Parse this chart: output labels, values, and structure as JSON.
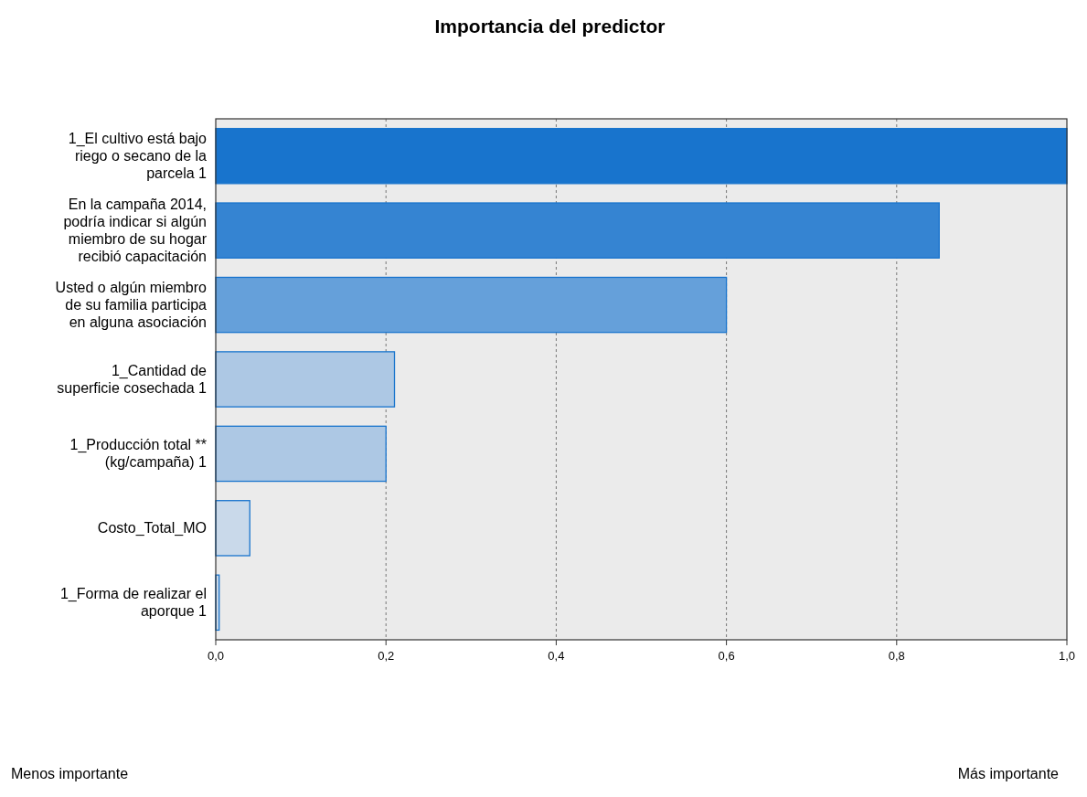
{
  "chart_data": {
    "type": "bar",
    "orientation": "horizontal",
    "title": "Importancia del predictor",
    "categories": [
      "1_El cultivo está bajo riego o secano de la parcela 1",
      "En la campaña 2014, podría indicar si algún miembro de su hogar recibió capacitación",
      "Usted o algún miembro de su familia participa en alguna asociación",
      "1_Cantidad de superficie cosechada 1",
      "1_Producción total ** (kg/campaña) 1",
      "Costo_Total_MO",
      "1_Forma de realizar el aporque 1"
    ],
    "values": [
      1.0,
      0.85,
      0.6,
      0.21,
      0.2,
      0.04,
      0.004
    ],
    "colors": [
      "#1874cd",
      "#3584d2",
      "#65a0da",
      "#adc8e4",
      "#adc8e4",
      "#c9d9ea",
      "#c9d9ea"
    ],
    "xlim": [
      0,
      1
    ],
    "xticks": [
      {
        "value": 0,
        "label": "0,0"
      },
      {
        "value": 0.2,
        "label": "0,2"
      },
      {
        "value": 0.4,
        "label": "0,4"
      },
      {
        "value": 0.6,
        "label": "0,6"
      },
      {
        "value": 0.8,
        "label": "0,8"
      },
      {
        "value": 1,
        "label": "1,0"
      }
    ],
    "grid": "x",
    "annotations": [
      "Menos importante",
      "Más importante"
    ]
  }
}
